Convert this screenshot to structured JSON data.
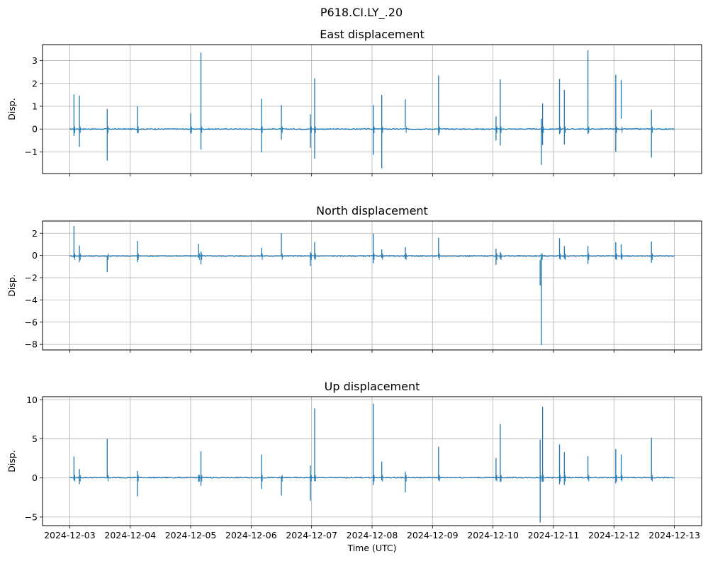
{
  "figure": {
    "suptitle": "P618.CI.LY_.20",
    "colors": {
      "line": "#1f77b4",
      "grid": "#b0b0b0",
      "axes": "#000000",
      "background": "#ffffff"
    }
  },
  "chart_data": [
    {
      "type": "line",
      "title": "East displacement",
      "xlabel": "",
      "ylabel": "Disp.",
      "x_ticks": [
        "2024-12-03",
        "2024-12-04",
        "2024-12-05",
        "2024-12-06",
        "2024-12-07",
        "2024-12-08",
        "2024-12-09",
        "2024-12-10",
        "2024-12-11",
        "2024-12-12",
        "2024-12-13"
      ],
      "x_tick_labels_visible": false,
      "x_range_days": [
        -0.45,
        10.45
      ],
      "ylim": [
        -1.95,
        3.7
      ],
      "y_ticks": [
        -1,
        0,
        1,
        2,
        3
      ],
      "y_tick_labels": [
        "−1",
        "0",
        "1",
        "2",
        "3"
      ],
      "grid": true,
      "baseline": 0.0,
      "spikes": [
        {
          "t": 0.07,
          "hi": 1.52,
          "lo": -0.3
        },
        {
          "t": 0.16,
          "hi": 1.47,
          "lo": -0.78
        },
        {
          "t": 0.62,
          "hi": 0.88,
          "lo": -1.38
        },
        {
          "t": 1.12,
          "hi": 1.0,
          "lo": -0.18
        },
        {
          "t": 2.0,
          "hi": 0.7,
          "lo": -0.2
        },
        {
          "t": 2.17,
          "hi": 3.35,
          "lo": -0.9
        },
        {
          "t": 3.17,
          "hi": 1.33,
          "lo": -1.02
        },
        {
          "t": 3.5,
          "hi": 1.05,
          "lo": -0.47
        },
        {
          "t": 3.98,
          "hi": 0.65,
          "lo": -0.82
        },
        {
          "t": 4.05,
          "hi": 2.23,
          "lo": -1.3
        },
        {
          "t": 5.02,
          "hi": 1.05,
          "lo": -1.13
        },
        {
          "t": 5.16,
          "hi": 1.5,
          "lo": -1.72
        },
        {
          "t": 5.55,
          "hi": 1.3,
          "lo": 0.08
        },
        {
          "t": 6.1,
          "hi": 2.35,
          "lo": -0.27
        },
        {
          "t": 7.05,
          "hi": 0.55,
          "lo": -0.5
        },
        {
          "t": 7.12,
          "hi": 2.18,
          "lo": -0.72
        },
        {
          "t": 7.8,
          "hi": 0.45,
          "lo": -1.57
        },
        {
          "t": 7.82,
          "hi": 1.12,
          "lo": -0.7
        },
        {
          "t": 8.1,
          "hi": 2.2,
          "lo": -0.22
        },
        {
          "t": 8.18,
          "hi": 1.72,
          "lo": -0.68
        },
        {
          "t": 8.57,
          "hi": 3.45,
          "lo": -0.22
        },
        {
          "t": 9.03,
          "hi": 2.38,
          "lo": -1.0
        },
        {
          "t": 9.12,
          "hi": 2.15,
          "lo": 0.45
        },
        {
          "t": 9.62,
          "hi": 0.85,
          "lo": -1.25
        }
      ]
    },
    {
      "type": "line",
      "title": "North displacement",
      "xlabel": "",
      "ylabel": "Disp.",
      "x_ticks": [
        "2024-12-03",
        "2024-12-04",
        "2024-12-05",
        "2024-12-06",
        "2024-12-07",
        "2024-12-08",
        "2024-12-09",
        "2024-12-10",
        "2024-12-11",
        "2024-12-12",
        "2024-12-13"
      ],
      "x_tick_labels_visible": false,
      "x_range_days": [
        -0.45,
        10.45
      ],
      "ylim": [
        -8.5,
        3.1
      ],
      "y_ticks": [
        -8,
        -6,
        -4,
        -2,
        0,
        2
      ],
      "y_tick_labels": [
        "−8",
        "−6",
        "−4",
        "−2",
        "0",
        "2"
      ],
      "grid": true,
      "baseline": -0.05,
      "spikes": [
        {
          "t": 0.07,
          "hi": 2.65,
          "lo": -0.2
        },
        {
          "t": 0.16,
          "hi": 0.9,
          "lo": -0.6
        },
        {
          "t": 0.62,
          "hi": -0.1,
          "lo": -1.5
        },
        {
          "t": 1.12,
          "hi": 1.3,
          "lo": -0.6
        },
        {
          "t": 2.13,
          "hi": 1.05,
          "lo": -0.2
        },
        {
          "t": 2.17,
          "hi": 0.35,
          "lo": -0.8
        },
        {
          "t": 3.17,
          "hi": 0.7,
          "lo": -0.1
        },
        {
          "t": 3.5,
          "hi": 2.0,
          "lo": -0.1
        },
        {
          "t": 3.98,
          "hi": 0.3,
          "lo": -0.95
        },
        {
          "t": 4.05,
          "hi": 1.2,
          "lo": -0.3
        },
        {
          "t": 5.02,
          "hi": 1.95,
          "lo": -0.7
        },
        {
          "t": 5.16,
          "hi": 0.55,
          "lo": -0.2
        },
        {
          "t": 5.55,
          "hi": 0.75,
          "lo": -0.3
        },
        {
          "t": 6.1,
          "hi": 1.6,
          "lo": -0.2
        },
        {
          "t": 7.05,
          "hi": 0.6,
          "lo": -0.85
        },
        {
          "t": 7.12,
          "hi": 0.3,
          "lo": -0.3
        },
        {
          "t": 7.8,
          "hi": -0.2,
          "lo": -8.05
        },
        {
          "t": 7.78,
          "hi": -0.4,
          "lo": -2.7
        },
        {
          "t": 8.1,
          "hi": 1.55,
          "lo": -0.3
        },
        {
          "t": 8.18,
          "hi": 0.85,
          "lo": -0.3
        },
        {
          "t": 8.57,
          "hi": 0.85,
          "lo": -0.75
        },
        {
          "t": 9.03,
          "hi": 1.2,
          "lo": -0.35
        },
        {
          "t": 9.12,
          "hi": 1.0,
          "lo": -0.3
        },
        {
          "t": 9.62,
          "hi": 1.25,
          "lo": -0.65
        }
      ]
    },
    {
      "type": "line",
      "title": "Up displacement",
      "xlabel": "Time (UTC)",
      "ylabel": "Disp.",
      "x_ticks": [
        "2024-12-03",
        "2024-12-04",
        "2024-12-05",
        "2024-12-06",
        "2024-12-07",
        "2024-12-08",
        "2024-12-09",
        "2024-12-10",
        "2024-12-11",
        "2024-12-12",
        "2024-12-13"
      ],
      "x_tick_labels_visible": true,
      "x_range_days": [
        -0.45,
        10.45
      ],
      "ylim": [
        -6.1,
        10.4
      ],
      "y_ticks": [
        -5,
        0,
        5,
        10
      ],
      "y_tick_labels": [
        "−5",
        "0",
        "5",
        "10"
      ],
      "grid": true,
      "baseline": 0.05,
      "spikes": [
        {
          "t": 0.07,
          "hi": 2.75,
          "lo": -0.3
        },
        {
          "t": 0.16,
          "hi": 1.15,
          "lo": -0.8
        },
        {
          "t": 0.62,
          "hi": 5.0,
          "lo": -0.05
        },
        {
          "t": 1.12,
          "hi": 0.9,
          "lo": -2.35
        },
        {
          "t": 2.13,
          "hi": 0.4,
          "lo": -0.5
        },
        {
          "t": 2.17,
          "hi": 3.4,
          "lo": -1.0
        },
        {
          "t": 3.17,
          "hi": 3.0,
          "lo": -1.4
        },
        {
          "t": 3.5,
          "hi": 0.2,
          "lo": -2.25
        },
        {
          "t": 3.98,
          "hi": 1.6,
          "lo": -2.9
        },
        {
          "t": 4.05,
          "hi": 8.9,
          "lo": -0.4
        },
        {
          "t": 5.02,
          "hi": 9.5,
          "lo": -0.9
        },
        {
          "t": 5.16,
          "hi": 2.1,
          "lo": -0.3
        },
        {
          "t": 5.55,
          "hi": 0.8,
          "lo": -1.85
        },
        {
          "t": 6.1,
          "hi": 4.0,
          "lo": -0.3
        },
        {
          "t": 7.05,
          "hi": 2.55,
          "lo": -0.3
        },
        {
          "t": 7.12,
          "hi": 6.9,
          "lo": -0.5
        },
        {
          "t": 7.78,
          "hi": 4.9,
          "lo": -5.7
        },
        {
          "t": 7.82,
          "hi": 9.1,
          "lo": -0.5
        },
        {
          "t": 8.1,
          "hi": 4.3,
          "lo": -0.8
        },
        {
          "t": 8.18,
          "hi": 3.3,
          "lo": -0.9
        },
        {
          "t": 8.57,
          "hi": 2.8,
          "lo": -0.2
        },
        {
          "t": 9.03,
          "hi": 3.7,
          "lo": -0.7
        },
        {
          "t": 9.12,
          "hi": 3.0,
          "lo": -0.3
        },
        {
          "t": 9.62,
          "hi": 5.15,
          "lo": -0.3
        }
      ]
    }
  ]
}
